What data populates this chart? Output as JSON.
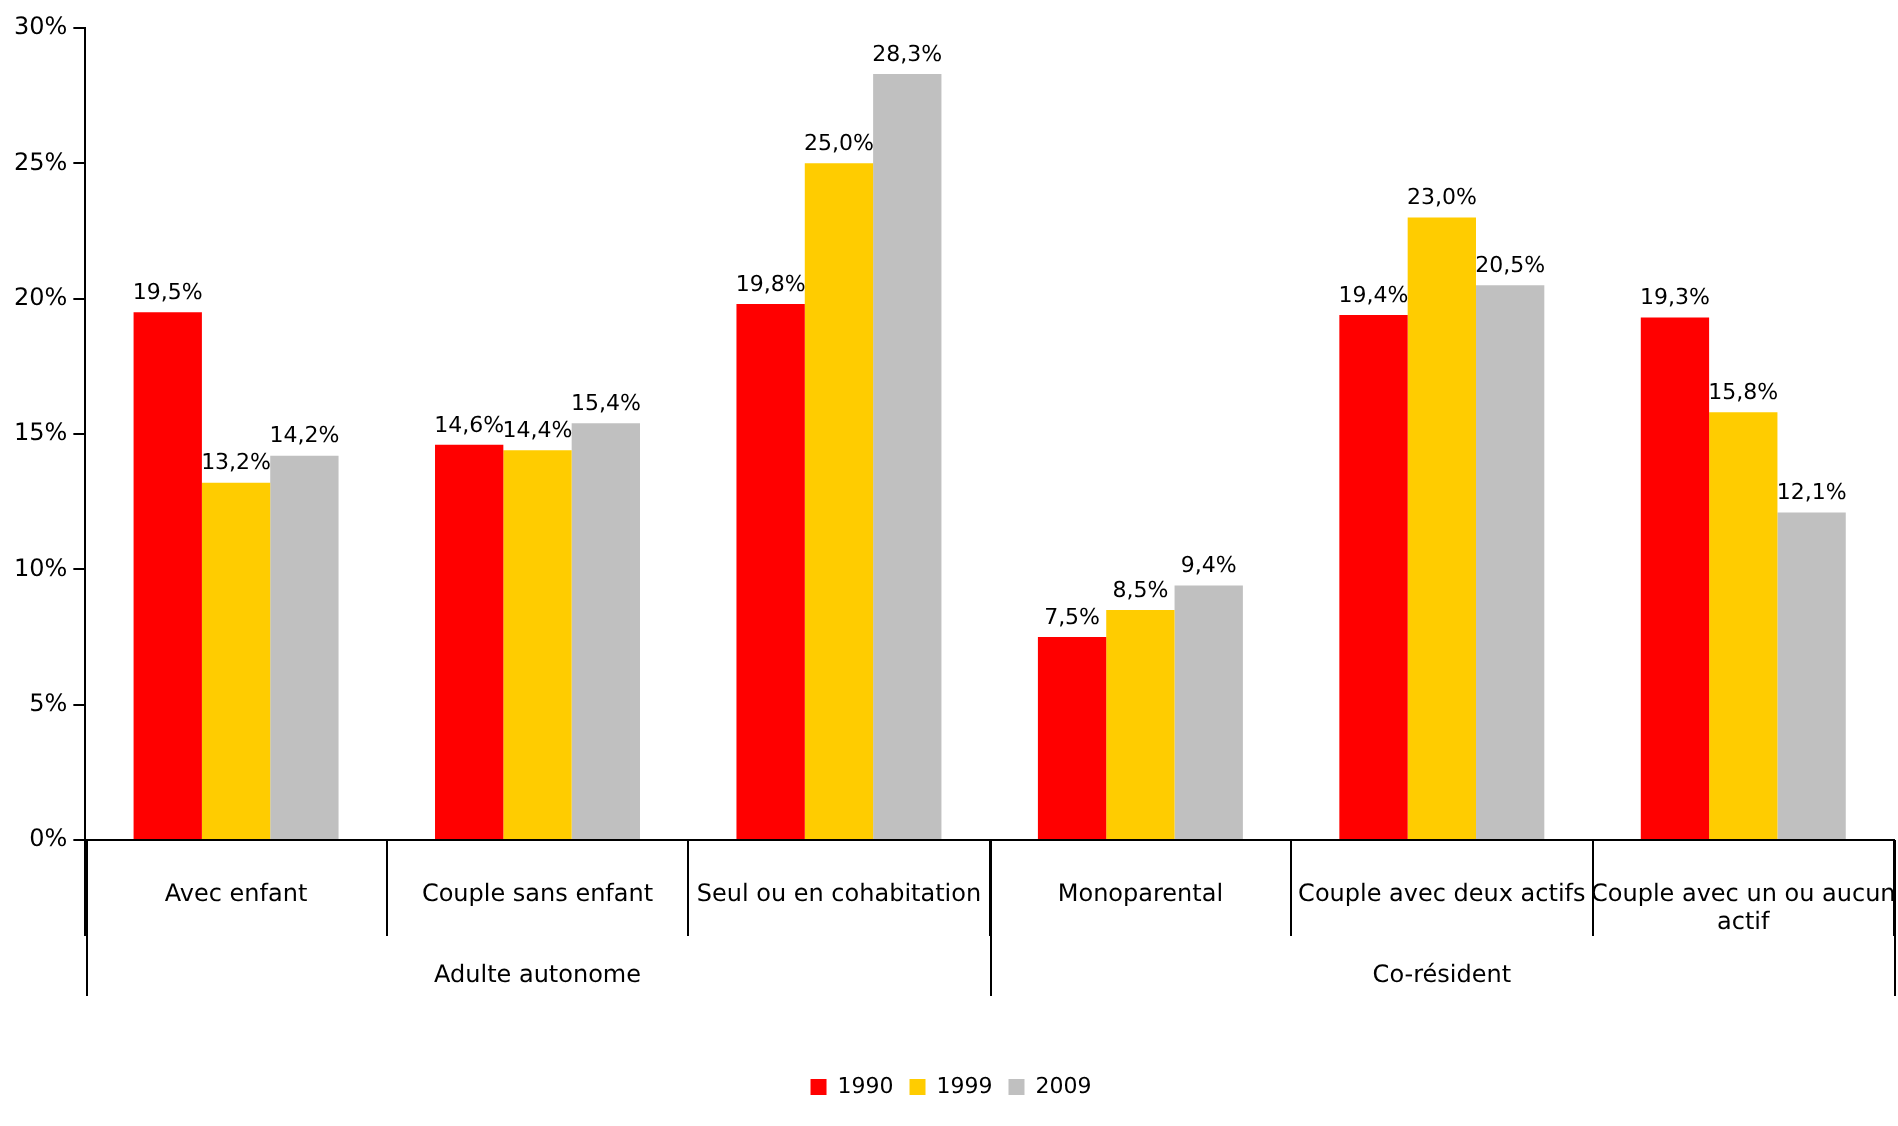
{
  "chart_data": {
    "type": "bar",
    "categories": [
      "Avec enfant",
      "Couple sans enfant",
      "Seul ou en cohabitation",
      "Monoparental",
      "Couple avec deux actifs",
      "Couple avec un ou aucun actif"
    ],
    "series": [
      {
        "name": "1990",
        "color": "#ff0000",
        "values": [
          19.5,
          14.6,
          19.8,
          7.5,
          19.4,
          19.3
        ],
        "value_labels": [
          "19,5%",
          "14,6%",
          "19,8%",
          "7,5%",
          "19,4%",
          "19,3%"
        ]
      },
      {
        "name": "1999",
        "color": "#ffcc00",
        "values": [
          13.2,
          14.4,
          25.0,
          8.5,
          23.0,
          15.8
        ],
        "value_labels": [
          "13,2%",
          "14,4%",
          "25,0%",
          "8,5%",
          "23,0%",
          "15,8%"
        ]
      },
      {
        "name": "2009",
        "color": "#c0c0c0",
        "values": [
          14.2,
          15.4,
          28.3,
          9.4,
          20.5,
          12.1
        ],
        "value_labels": [
          "14,2%",
          "15,4%",
          "28,3%",
          "9,4%",
          "20,5%",
          "12,1%"
        ]
      }
    ],
    "ylim": [
      0,
      30
    ],
    "yticks": [
      {
        "value": 0,
        "label": "0%"
      },
      {
        "value": 5,
        "label": "5%"
      },
      {
        "value": 10,
        "label": "10%"
      },
      {
        "value": 15,
        "label": "15%"
      },
      {
        "value": 20,
        "label": "20%"
      },
      {
        "value": 25,
        "label": "25%"
      },
      {
        "value": 30,
        "label": "30%"
      }
    ],
    "annotations": [
      "Adulte autonome",
      "Co-résident"
    ],
    "grid": false,
    "legend": "bottom"
  }
}
